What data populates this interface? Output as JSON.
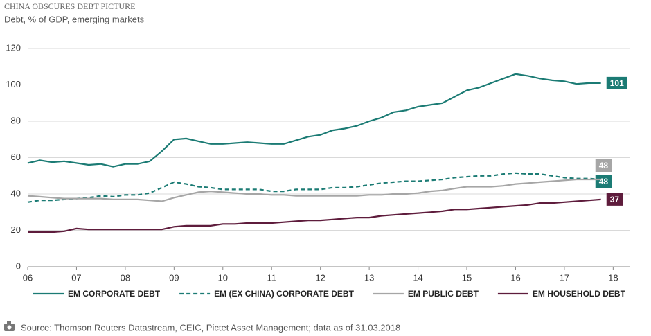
{
  "chart_data": {
    "type": "line",
    "title": "CHINA OBSCURES DEBT PICTURE",
    "subtitle": "Debt, % of GDP, emerging markets",
    "source": "Source: Thomson Reuters Datastream, CEIC, Pictet Asset Management; data as of  31.03.2018",
    "x": [
      2006,
      2006.25,
      2006.5,
      2006.75,
      2007,
      2007.25,
      2007.5,
      2007.75,
      2008,
      2008.25,
      2008.5,
      2008.75,
      2009,
      2009.25,
      2009.5,
      2009.75,
      2010,
      2010.25,
      2010.5,
      2010.75,
      2011,
      2011.25,
      2011.5,
      2011.75,
      2012,
      2012.25,
      2012.5,
      2012.75,
      2013,
      2013.25,
      2013.5,
      2013.75,
      2014,
      2014.25,
      2014.5,
      2014.75,
      2015,
      2015.25,
      2015.5,
      2015.75,
      2016,
      2016.25,
      2016.5,
      2016.75,
      2017,
      2017.25,
      2017.5,
      2017.75
    ],
    "series": [
      {
        "name": "EM CORPORATE DEBT",
        "color": "#1b7b74",
        "line_style": "solid",
        "values": [
          57,
          58.5,
          57.5,
          58,
          57,
          56,
          56.5,
          55,
          56.5,
          56.5,
          58,
          63.5,
          70,
          70.5,
          69,
          67.5,
          67.5,
          68,
          68.5,
          68,
          67.5,
          67.5,
          69.5,
          71.5,
          72.5,
          75,
          76,
          77.5,
          80,
          82,
          85,
          86,
          88,
          89,
          90,
          93.5,
          97,
          98.5,
          101,
          103.5,
          106,
          105,
          103.5,
          102.5,
          102,
          100.5,
          101,
          101
        ]
      },
      {
        "name": "EM (EX CHINA) CORPORATE DEBT",
        "color": "#1b7b74",
        "line_style": "dashed",
        "values": [
          35.5,
          36.5,
          36.5,
          37,
          37.5,
          38,
          39,
          38.5,
          39.5,
          39.5,
          40.5,
          43.5,
          46.5,
          45.5,
          44,
          43.5,
          42.5,
          42.5,
          42.5,
          42.5,
          41.5,
          41.5,
          42.5,
          42.5,
          42.5,
          43.5,
          43.5,
          44,
          45,
          46,
          46.5,
          47,
          47,
          47.5,
          48,
          49,
          49.5,
          50,
          50,
          51,
          51.5,
          51,
          51,
          50,
          49,
          48.5,
          48.5,
          48
        ]
      },
      {
        "name": "EM PUBLIC DEBT",
        "color": "#a6a6a6",
        "line_style": "solid",
        "values": [
          39,
          38.5,
          38,
          37.5,
          37.5,
          37.5,
          37.5,
          37,
          37,
          37,
          36.5,
          36,
          38,
          39.5,
          41,
          41.5,
          41,
          40.5,
          40,
          40,
          39.5,
          39.5,
          39,
          39,
          39,
          39,
          39,
          39,
          39.5,
          39.5,
          40,
          40,
          40.5,
          41.5,
          42,
          43,
          44,
          44,
          44,
          44.5,
          45.5,
          46,
          46.5,
          47,
          47.5,
          48,
          48,
          48
        ]
      },
      {
        "name": "EM HOUSEHOLD DEBT",
        "color": "#5e1c3c",
        "line_style": "solid",
        "values": [
          19,
          19,
          19,
          19.5,
          21,
          20.5,
          20.5,
          20.5,
          20.5,
          20.5,
          20.5,
          20.5,
          22,
          22.5,
          22.5,
          22.5,
          23.5,
          23.5,
          24,
          24,
          24,
          24.5,
          25,
          25.5,
          25.5,
          26,
          26.5,
          27,
          27,
          28,
          28.5,
          29,
          29.5,
          30,
          30.5,
          31.5,
          31.5,
          32,
          32.5,
          33,
          33.5,
          34,
          35,
          35,
          35.5,
          36,
          36.5,
          37
        ]
      }
    ],
    "xlim": [
      2006,
      2018.35
    ],
    "xticks": [
      {
        "value": 2006,
        "label": "06"
      },
      {
        "value": 2007,
        "label": "07"
      },
      {
        "value": 2008,
        "label": "08"
      },
      {
        "value": 2009,
        "label": "09"
      },
      {
        "value": 2010,
        "label": "10"
      },
      {
        "value": 2011,
        "label": "11"
      },
      {
        "value": 2012,
        "label": "12"
      },
      {
        "value": 2013,
        "label": "13"
      },
      {
        "value": 2014,
        "label": "14"
      },
      {
        "value": 2015,
        "label": "15"
      },
      {
        "value": 2016,
        "label": "16"
      },
      {
        "value": 2017,
        "label": "17"
      },
      {
        "value": 2018,
        "label": "18"
      }
    ],
    "ylim": [
      0,
      120
    ],
    "yticks": [
      0,
      20,
      40,
      60,
      80,
      100,
      120
    ],
    "grid": true,
    "legend": "bottom"
  }
}
